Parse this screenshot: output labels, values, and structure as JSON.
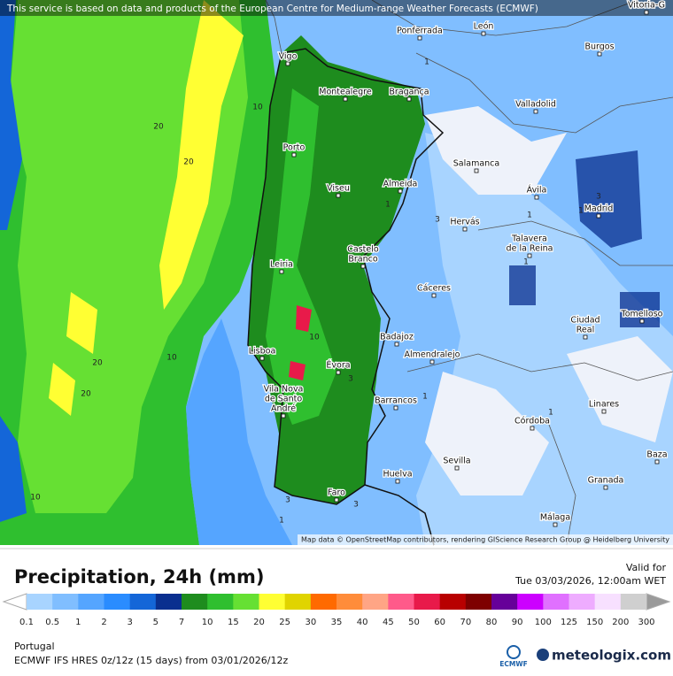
{
  "header": {
    "attribution": "This service is based on data and products of the European Centre for Medium-range Weather Forecasts (ECMWF)"
  },
  "map": {
    "cities": [
      {
        "label": [
          "Vitoria-G"
        ]
      },
      {
        "label": [
          "Ponferrada"
        ]
      },
      {
        "label": [
          "León"
        ]
      },
      {
        "label": [
          "Burgos"
        ]
      },
      {
        "label": [
          "Vigo"
        ]
      },
      {
        "label": [
          "Montealegre"
        ]
      },
      {
        "label": [
          "Bragança"
        ]
      },
      {
        "label": [
          "Valladolid"
        ]
      },
      {
        "label": [
          "Porto"
        ]
      },
      {
        "label": [
          "Salamanca"
        ]
      },
      {
        "label": [
          "Viseu"
        ]
      },
      {
        "label": [
          "Almeida"
        ]
      },
      {
        "label": [
          "Ávila"
        ]
      },
      {
        "label": [
          "Madrid"
        ]
      },
      {
        "label": [
          "Hervás"
        ]
      },
      {
        "label": [
          "Talavera",
          "de la Reina"
        ]
      },
      {
        "label": [
          "Castelo",
          "Branco"
        ]
      },
      {
        "label": [
          "Leiria"
        ]
      },
      {
        "label": [
          "Cáceres"
        ]
      },
      {
        "label": [
          "Tomelloso"
        ]
      },
      {
        "label": [
          "Ciudad",
          "Real"
        ]
      },
      {
        "label": [
          "Lisboa"
        ]
      },
      {
        "label": [
          "Badajoz"
        ]
      },
      {
        "label": [
          "Almendralejo"
        ]
      },
      {
        "label": [
          "Évora"
        ]
      },
      {
        "label": [
          "Vila Nova",
          "de Santo",
          "André"
        ]
      },
      {
        "label": [
          "Barrancos"
        ]
      },
      {
        "label": [
          "Linares"
        ]
      },
      {
        "label": [
          "Córdoba"
        ]
      },
      {
        "label": [
          "Sevilla"
        ]
      },
      {
        "label": [
          "Baza"
        ]
      },
      {
        "label": [
          "Huelva"
        ]
      },
      {
        "label": [
          "Granada"
        ]
      },
      {
        "label": [
          "Faro"
        ]
      },
      {
        "label": [
          "Málaga"
        ]
      }
    ],
    "contour_labels": [
      "20",
      "20",
      "10",
      "1",
      "1",
      "3",
      "1",
      "3",
      "1",
      "1",
      "10",
      "20",
      "10",
      "20",
      "3",
      "1",
      "1",
      "10",
      "3",
      "3",
      "1"
    ],
    "credits": "Map data © OpenStreetMap contributors, rendering GIScience Research Group @ Heidelberg University"
  },
  "footer": {
    "title": "Precipitation, 24h (mm)",
    "valid_label": "Valid for",
    "valid_time": "Tue 03/03/2026, 12:00am WET",
    "region": "Portugal",
    "model": "ECMWF IFS HRES 0z/12z (15 days) from  03/01/2026/12z",
    "logo_ecmwf": "ECMWF",
    "logo_site": "meteologix.com"
  },
  "legend": {
    "ticks": [
      "0.1",
      "0.5",
      "1",
      "2",
      "3",
      "5",
      "7",
      "10",
      "15",
      "20",
      "25",
      "30",
      "35",
      "40",
      "45",
      "50",
      "60",
      "70",
      "80",
      "90",
      "100",
      "125",
      "150",
      "200",
      "300"
    ],
    "under_color": "#ffffff",
    "over_color": "#9a9a9a",
    "colors": [
      "#a8d4ff",
      "#80beff",
      "#55a5ff",
      "#2a8cff",
      "#1466d8",
      "#0a2f8f",
      "#1e8c1e",
      "#2fbf2f",
      "#66e033",
      "#ffff33",
      "#e0d400",
      "#ff6a00",
      "#ff8c3a",
      "#ffa585",
      "#ff5a8a",
      "#e81a4a",
      "#b80000",
      "#7e0000",
      "#660099",
      "#cc00ff",
      "#e070ff",
      "#eeacff",
      "#f7e0ff",
      "#cfcfcf"
    ]
  }
}
